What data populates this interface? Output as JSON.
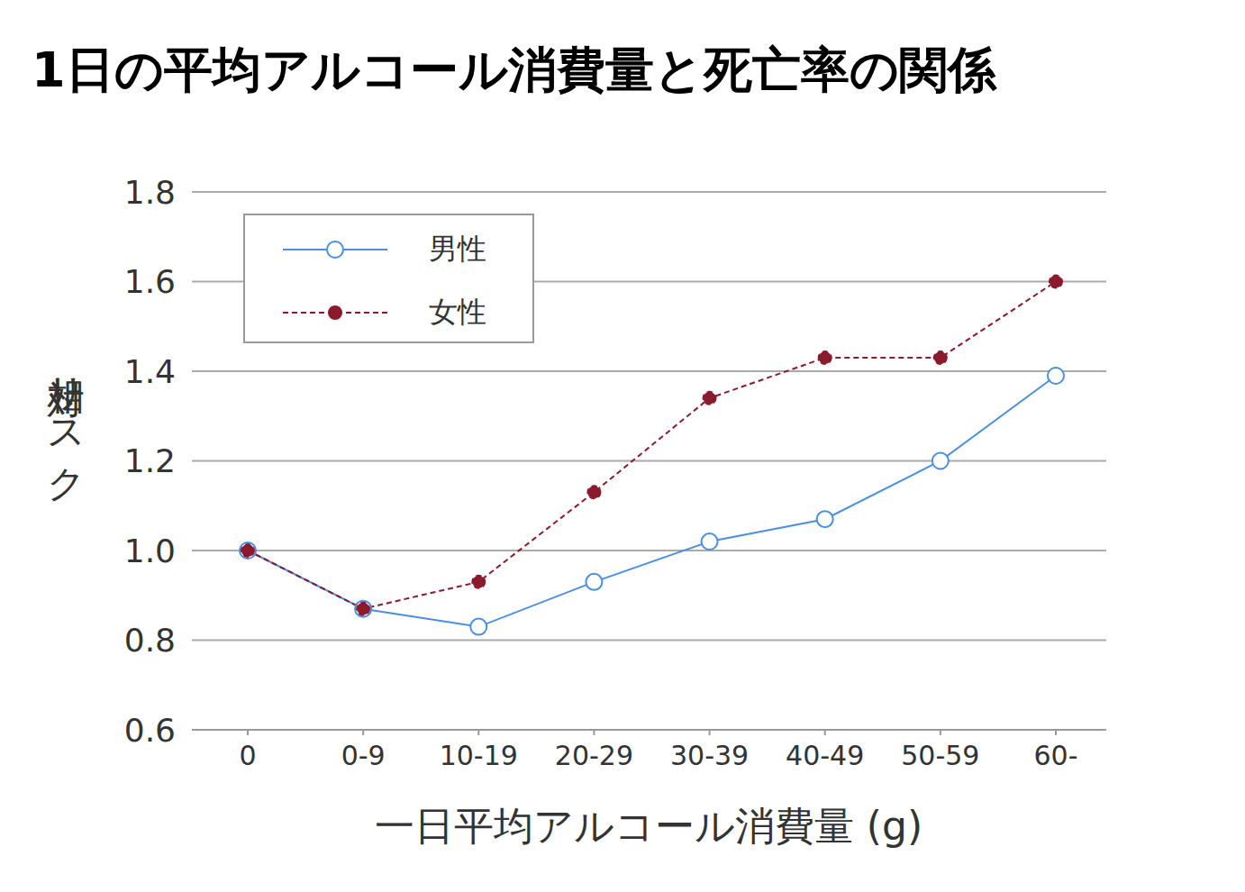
{
  "chart_data": {
    "type": "line",
    "title": "1日の平均アルコール消費量と死亡率の関係",
    "x_label": "一日平均アルコール消費量 (g)",
    "y_label": "相対リスク",
    "categories": [
      "0",
      "0-9",
      "10-19",
      "20-29",
      "30-39",
      "40-49",
      "50-59",
      "60-"
    ],
    "series": [
      {
        "name": "男性",
        "color": "#4a8fe0",
        "marker": "open_circle",
        "line_style": "solid",
        "values": [
          1.0,
          0.87,
          0.83,
          0.93,
          1.02,
          1.07,
          1.2,
          1.39
        ]
      },
      {
        "name": "女性",
        "color": "#8b1a2c",
        "marker": "circle",
        "line_style": "dashed",
        "values": [
          1.0,
          0.87,
          0.93,
          1.13,
          1.34,
          1.43,
          1.43,
          1.6
        ]
      }
    ],
    "ylim": [
      0.6,
      1.8
    ],
    "yticks": [
      0.6,
      0.8,
      {
        "value": 1,
        "label": "1.0"
      },
      1.2,
      1.4,
      1.6,
      1.8
    ],
    "grid": true,
    "legend": "upper left"
  }
}
